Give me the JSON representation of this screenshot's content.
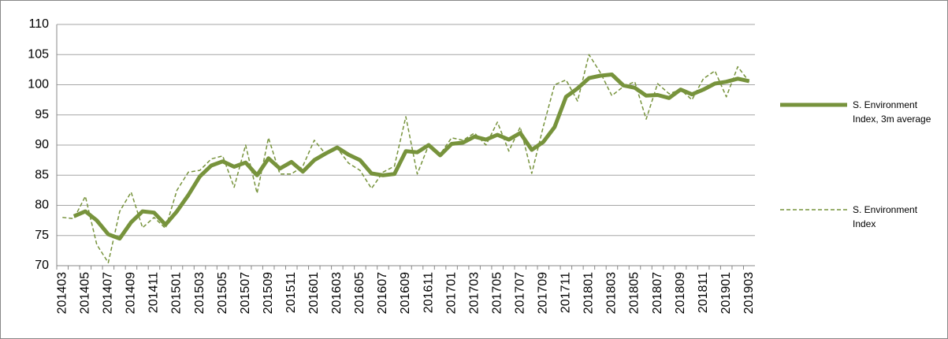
{
  "chart_data": {
    "type": "line",
    "categories": [
      "201403",
      null,
      "201405",
      null,
      "201407",
      null,
      "201409",
      null,
      "201411",
      null,
      "201501",
      null,
      "201503",
      null,
      "201505",
      null,
      "201507",
      null,
      "201509",
      null,
      "201511",
      null,
      "201601",
      null,
      "201603",
      null,
      "201605",
      null,
      "201607",
      null,
      "201609",
      null,
      "201611",
      null,
      "201701",
      null,
      "201703",
      null,
      "201705",
      null,
      "201707",
      null,
      "201709",
      null,
      "201711",
      null,
      "201801",
      null,
      "201803",
      null,
      "201805",
      null,
      "201807",
      null,
      "201809",
      null,
      "201811",
      null,
      "201901",
      null,
      "201903"
    ],
    "series": [
      {
        "name": "S. Environment Index, 3m average",
        "color": "#77933c",
        "line_style": "solid",
        "values": [
          null,
          78.2,
          79,
          77.5,
          75.2,
          74.5,
          77.2,
          79,
          78.8,
          76.8,
          79,
          81.7,
          84.8,
          86.6,
          87.3,
          86.4,
          87.1,
          85,
          87.8,
          86.1,
          87.2,
          85.6,
          87.5,
          88.6,
          89.6,
          88.4,
          87.5,
          85.3,
          85,
          85.2,
          89,
          88.8,
          90,
          88.3,
          90.2,
          90.4,
          91.4,
          90.9,
          91.7,
          90.9,
          92,
          89.2,
          90.5,
          93,
          98,
          99.4,
          101.1,
          101.5,
          101.7,
          99.9,
          99.5,
          98.2,
          98.3,
          97.8,
          99.2,
          98.4,
          99.2,
          100.2,
          100.5,
          101,
          100.6
        ]
      },
      {
        "name": "S. Environment Index",
        "color": "#77933c",
        "line_style": "dashed",
        "values": [
          78,
          77.8,
          81.5,
          73.5,
          70.5,
          79,
          82.2,
          76.3,
          78,
          76.2,
          82.5,
          85.5,
          85.8,
          87.7,
          88.2,
          83,
          90,
          82,
          91.2,
          85.2,
          85.2,
          86.5,
          90.8,
          88.5,
          89.5,
          87,
          85.8,
          82.8,
          85.5,
          86.5,
          94.7,
          85.2,
          90,
          88.5,
          91.2,
          90.8,
          92,
          90,
          93.8,
          89,
          93,
          85.3,
          93,
          100,
          100.8,
          97.3,
          105,
          102,
          98.2,
          99.7,
          100.5,
          94.3,
          100.2,
          98.5,
          99.2,
          97.5,
          101,
          102.3,
          98,
          103,
          100.5
        ]
      }
    ],
    "ylim": [
      70,
      110
    ],
    "yticks": [
      70,
      75,
      80,
      85,
      90,
      95,
      100,
      105,
      110
    ],
    "grid": true,
    "legend": "right"
  }
}
